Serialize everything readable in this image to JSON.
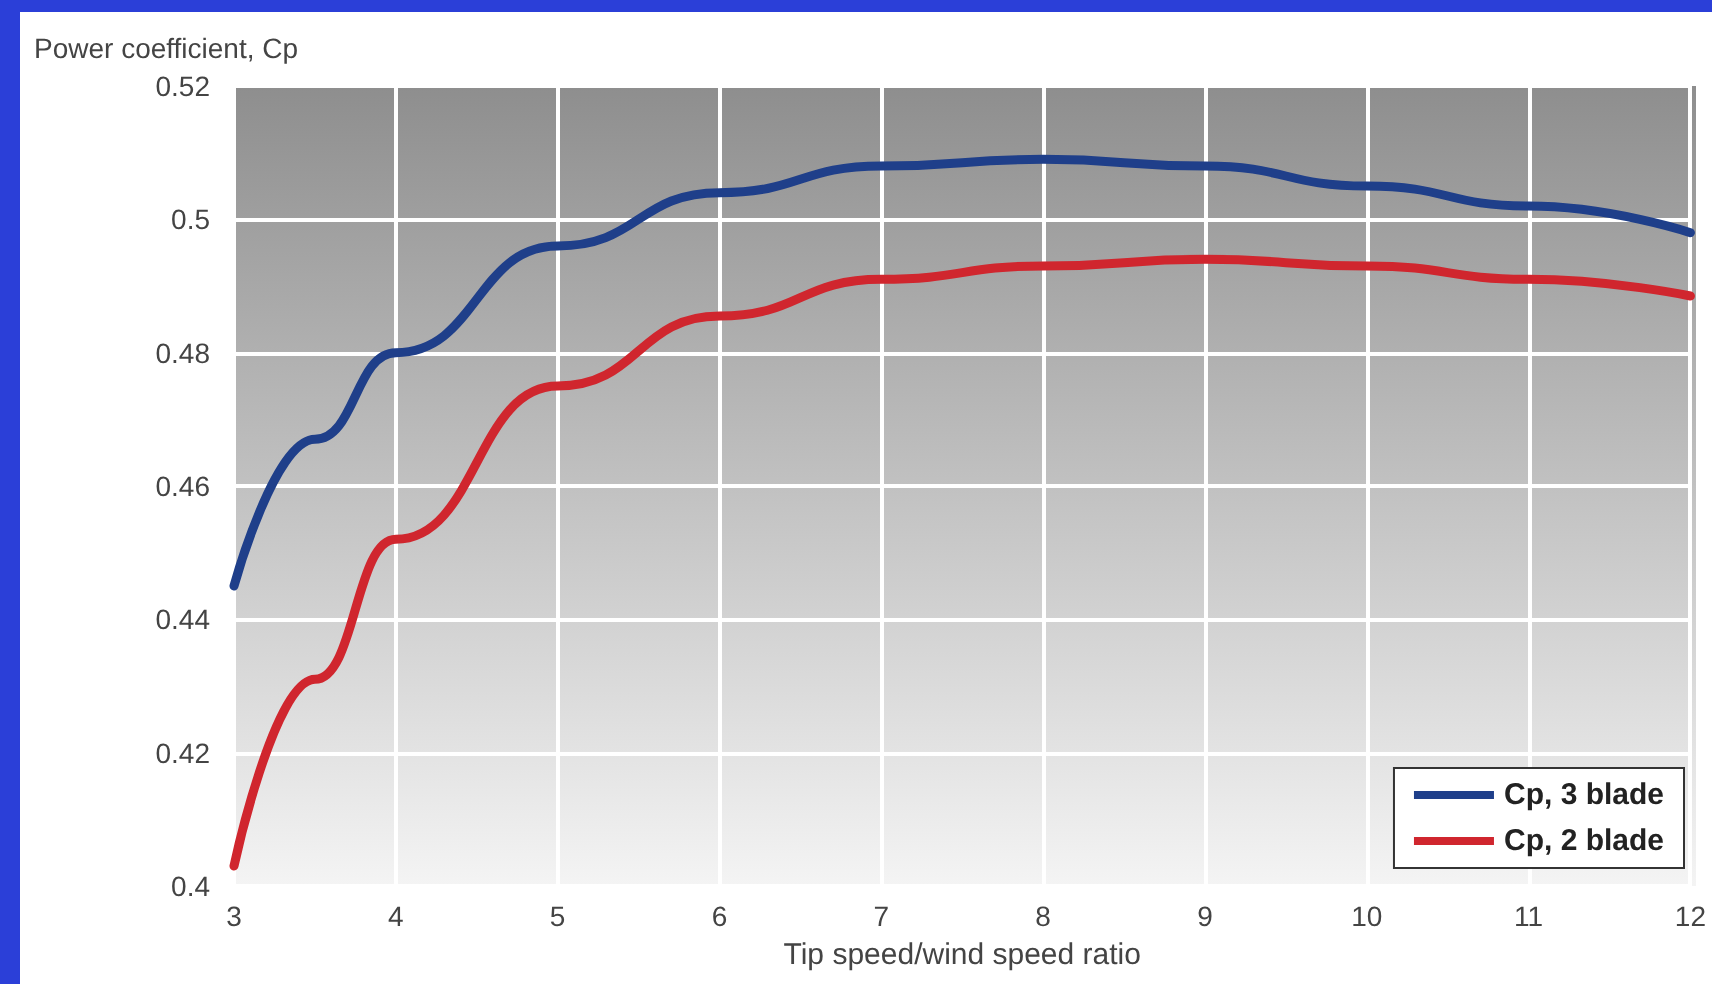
{
  "chart_data": {
    "type": "line",
    "xlabel": "Tip speed/wind speed ratio",
    "ylabel": "Power coefficient, Cp",
    "x": [
      3,
      3.5,
      4,
      5,
      6,
      7,
      8,
      9,
      10,
      11,
      12
    ],
    "series": [
      {
        "name": "Cp, 3 blade",
        "color": "#1f3f8a",
        "values": [
          0.445,
          0.467,
          0.48,
          0.496,
          0.504,
          0.508,
          0.509,
          0.508,
          0.505,
          0.502,
          0.498
        ]
      },
      {
        "name": "Cp, 2 blade",
        "color": "#d0262e",
        "values": [
          0.403,
          0.431,
          0.452,
          0.475,
          0.4855,
          0.491,
          0.493,
          0.494,
          0.493,
          0.491,
          0.4885
        ]
      }
    ],
    "xlim": [
      3,
      12
    ],
    "xticks": [
      3,
      4,
      5,
      6,
      7,
      8,
      9,
      10,
      11,
      12
    ],
    "ylim": [
      0.4,
      0.52
    ],
    "yticks": [
      0.4,
      0.42,
      0.44,
      0.46,
      0.48,
      0.5,
      0.52
    ],
    "grid": true,
    "legend": "bottom right",
    "marker": "none",
    "line_style": "solid"
  }
}
